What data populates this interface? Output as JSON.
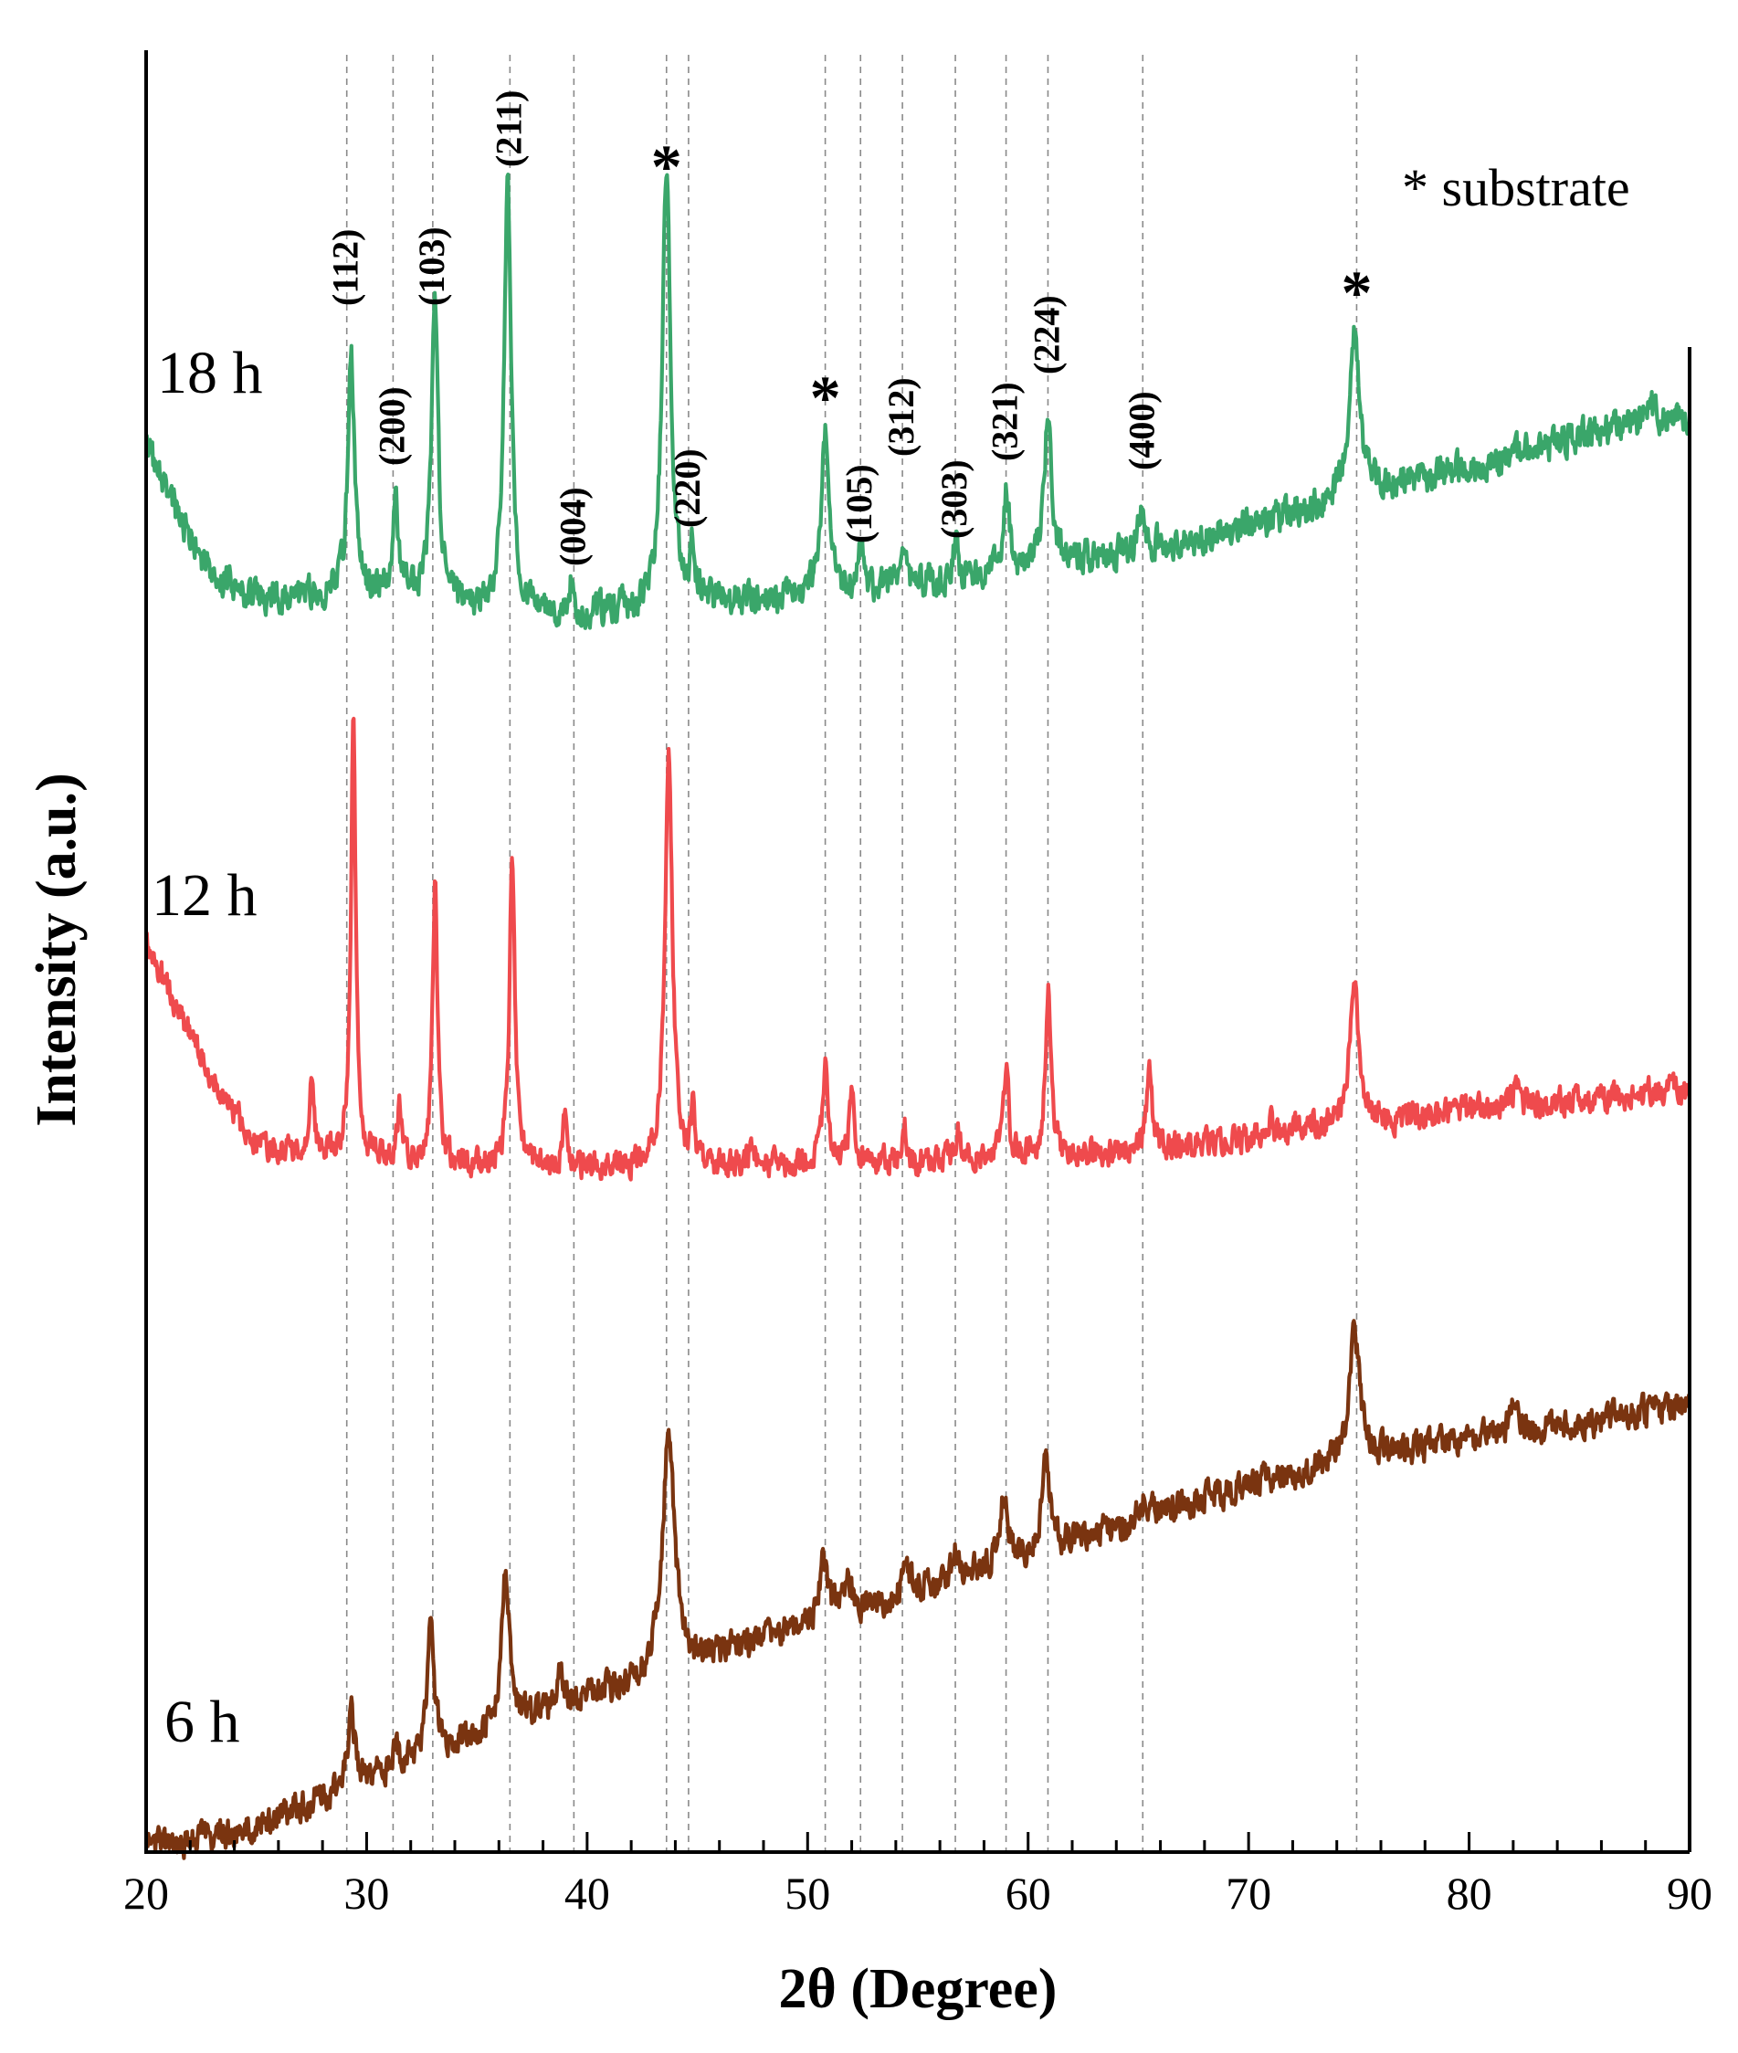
{
  "chart_data": {
    "type": "line",
    "title": "",
    "xlabel": "2θ (Degree)",
    "ylabel": "Intensity (a.u.)",
    "xlim": [
      20,
      90
    ],
    "ylim": [
      0,
      1.0
    ],
    "x_ticks": [
      20,
      30,
      40,
      50,
      60,
      70,
      80,
      90
    ],
    "y_ticks_shown": false,
    "grid": false,
    "legend": "* substrate",
    "reference_lines_2theta": [
      29.1,
      31.2,
      33.0,
      36.5,
      39.4,
      43.6,
      44.6,
      50.8,
      52.4,
      54.3,
      56.7,
      59.0,
      60.9,
      65.2,
      74.9
    ],
    "hkl_annotations": [
      {
        "label": "(112)",
        "two_theta": 29.1
      },
      {
        "label": "(200)",
        "two_theta": 31.2
      },
      {
        "label": "(103)",
        "two_theta": 33.0
      },
      {
        "label": "(211)",
        "two_theta": 36.5
      },
      {
        "label": "(004)",
        "two_theta": 39.4
      },
      {
        "label": "(220)",
        "two_theta": 44.6
      },
      {
        "label": "(105)",
        "two_theta": 52.4
      },
      {
        "label": "(312)",
        "two_theta": 54.3
      },
      {
        "label": "(303)",
        "two_theta": 56.7
      },
      {
        "label": "(321)",
        "two_theta": 59.0
      },
      {
        "label": "(224)",
        "two_theta": 60.9
      },
      {
        "label": "(400)",
        "two_theta": 65.2
      }
    ],
    "substrate_markers": [
      {
        "label": "*",
        "two_theta": 43.6
      },
      {
        "label": "*",
        "two_theta": 50.8
      },
      {
        "label": "*",
        "two_theta": 74.9
      }
    ],
    "series": [
      {
        "name": "18 h",
        "color": "#3aa66a",
        "noise": 0.007,
        "seed": 18,
        "baseline": [
          [
            20,
            0.785
          ],
          [
            21,
            0.755
          ],
          [
            23,
            0.71
          ],
          [
            25,
            0.698
          ],
          [
            28,
            0.7
          ],
          [
            31,
            0.7
          ],
          [
            35,
            0.69
          ],
          [
            40,
            0.688
          ],
          [
            45,
            0.695
          ],
          [
            50,
            0.698
          ],
          [
            55,
            0.706
          ],
          [
            60,
            0.714
          ],
          [
            65,
            0.724
          ],
          [
            70,
            0.738
          ],
          [
            75,
            0.755
          ],
          [
            80,
            0.77
          ],
          [
            85,
            0.788
          ],
          [
            90,
            0.8
          ]
        ],
        "peaks": [
          [
            29.3,
            0.13,
            0.18
          ],
          [
            31.3,
            0.05,
            0.15
          ],
          [
            33.1,
            0.165,
            0.18
          ],
          [
            36.4,
            0.235,
            0.2
          ],
          [
            39.3,
            0.02,
            0.12
          ],
          [
            43.6,
            0.245,
            0.22
          ],
          [
            44.8,
            0.03,
            0.12
          ],
          [
            50.8,
            0.09,
            0.22
          ],
          [
            52.4,
            0.02,
            0.15
          ],
          [
            54.4,
            0.02,
            0.12
          ],
          [
            56.7,
            0.02,
            0.12
          ],
          [
            59.0,
            0.045,
            0.18
          ],
          [
            60.9,
            0.09,
            0.18
          ],
          [
            65.1,
            0.025,
            0.18
          ],
          [
            74.8,
            0.095,
            0.28
          ],
          [
            88.2,
            0.01,
            0.25
          ]
        ]
      },
      {
        "name": "12 h",
        "color": "#ef4a4d",
        "noise": 0.006,
        "seed": 12,
        "baseline": [
          [
            20,
            0.505
          ],
          [
            21,
            0.48
          ],
          [
            22,
            0.455
          ],
          [
            23,
            0.43
          ],
          [
            24,
            0.41
          ],
          [
            25,
            0.395
          ],
          [
            27,
            0.388
          ],
          [
            30,
            0.386
          ],
          [
            35,
            0.381
          ],
          [
            40,
            0.38
          ],
          [
            45,
            0.38
          ],
          [
            50,
            0.382
          ],
          [
            55,
            0.384
          ],
          [
            60,
            0.387
          ],
          [
            65,
            0.39
          ],
          [
            70,
            0.397
          ],
          [
            75,
            0.405
          ],
          [
            80,
            0.412
          ],
          [
            85,
            0.418
          ],
          [
            90,
            0.425
          ]
        ],
        "peaks": [
          [
            27.5,
            0.05,
            0.12
          ],
          [
            29.4,
            0.245,
            0.13
          ],
          [
            31.5,
            0.03,
            0.12
          ],
          [
            33.1,
            0.155,
            0.13
          ],
          [
            36.6,
            0.18,
            0.14
          ],
          [
            39.0,
            0.03,
            0.12
          ],
          [
            43.7,
            0.235,
            0.2
          ],
          [
            44.8,
            0.03,
            0.12
          ],
          [
            47.5,
            0.01,
            0.2
          ],
          [
            50.8,
            0.055,
            0.16
          ],
          [
            52.0,
            0.045,
            0.13
          ],
          [
            54.4,
            0.02,
            0.13
          ],
          [
            56.8,
            0.015,
            0.13
          ],
          [
            59.0,
            0.05,
            0.14
          ],
          [
            60.9,
            0.095,
            0.14
          ],
          [
            65.5,
            0.04,
            0.16
          ],
          [
            71.0,
            0.01,
            0.15
          ],
          [
            74.8,
            0.075,
            0.26
          ],
          [
            82.1,
            0.01,
            0.2
          ]
        ]
      },
      {
        "name": "6 h",
        "color": "#7a3410",
        "noise": 0.0065,
        "seed": 6,
        "baseline": [
          [
            20,
            0.005
          ],
          [
            22,
            0.005
          ],
          [
            25,
            0.015
          ],
          [
            28,
            0.03
          ],
          [
            30,
            0.04
          ],
          [
            33,
            0.055
          ],
          [
            36,
            0.07
          ],
          [
            40,
            0.085
          ],
          [
            43,
            0.098
          ],
          [
            46,
            0.11
          ],
          [
            50,
            0.125
          ],
          [
            55,
            0.145
          ],
          [
            60,
            0.165
          ],
          [
            65,
            0.185
          ],
          [
            70,
            0.205
          ],
          [
            75,
            0.218
          ],
          [
            80,
            0.23
          ],
          [
            85,
            0.238
          ],
          [
            90,
            0.25
          ]
        ],
        "peaks": [
          [
            29.3,
            0.04,
            0.2
          ],
          [
            31.3,
            0.01,
            0.15
          ],
          [
            32.9,
            0.07,
            0.2
          ],
          [
            36.3,
            0.09,
            0.2
          ],
          [
            38.8,
            0.02,
            0.15
          ],
          [
            43.7,
            0.135,
            0.32
          ],
          [
            50.7,
            0.035,
            0.22
          ],
          [
            51.8,
            0.025,
            0.18
          ],
          [
            54.5,
            0.015,
            0.2
          ],
          [
            56.7,
            0.015,
            0.2
          ],
          [
            58.9,
            0.035,
            0.22
          ],
          [
            60.8,
            0.062,
            0.18
          ],
          [
            65.3,
            0.01,
            0.2
          ],
          [
            74.8,
            0.07,
            0.3
          ],
          [
            82.0,
            0.015,
            0.2
          ]
        ]
      }
    ]
  }
}
